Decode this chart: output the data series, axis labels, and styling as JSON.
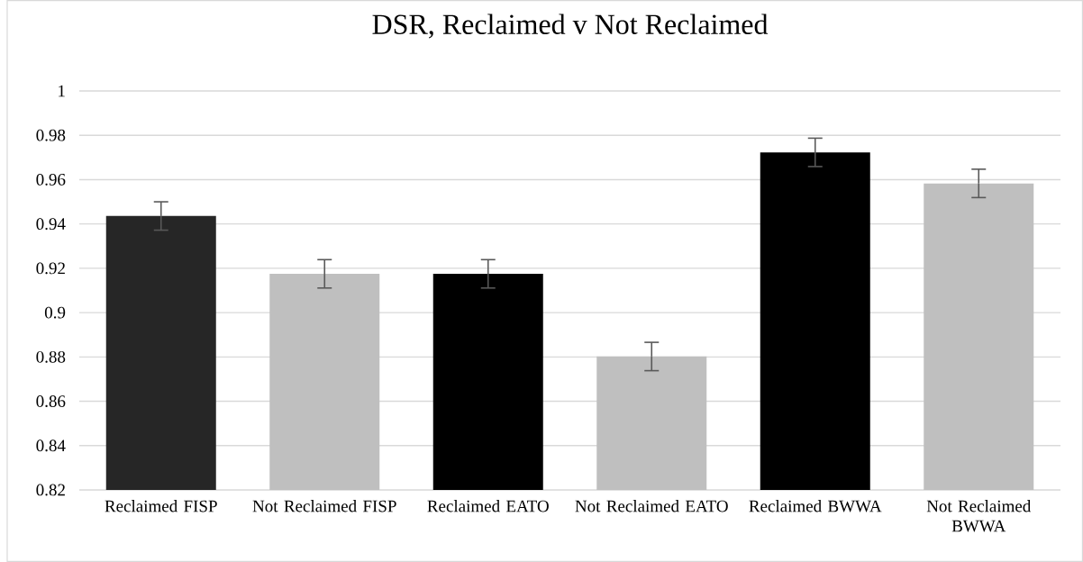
{
  "chart_data": {
    "type": "bar",
    "title": "DSR, Reclaimed v Not Reclaimed",
    "categories": [
      "Reclaimed FISP",
      "Not Reclaimed FISP",
      "Reclaimed EATO",
      "Not Reclaimed EATO",
      "Reclaimed BWWA",
      "Not Reclaimed BWWA"
    ],
    "values": [
      0.9436,
      0.9175,
      0.9175,
      0.8802,
      0.9723,
      0.9583
    ],
    "errors": [
      0.0064,
      0.0064,
      0.0064,
      0.0064,
      0.0064,
      0.0064
    ],
    "colors": [
      "#262626",
      "#bfbfbf",
      "#000000",
      "#bfbfbf",
      "#000000",
      "#bfbfbf"
    ],
    "ylim": [
      0.82,
      1
    ],
    "yticks": [
      0.82,
      0.84,
      0.86,
      0.88,
      0.9,
      0.92,
      0.94,
      0.96,
      0.98,
      1
    ],
    "grid": "y"
  }
}
